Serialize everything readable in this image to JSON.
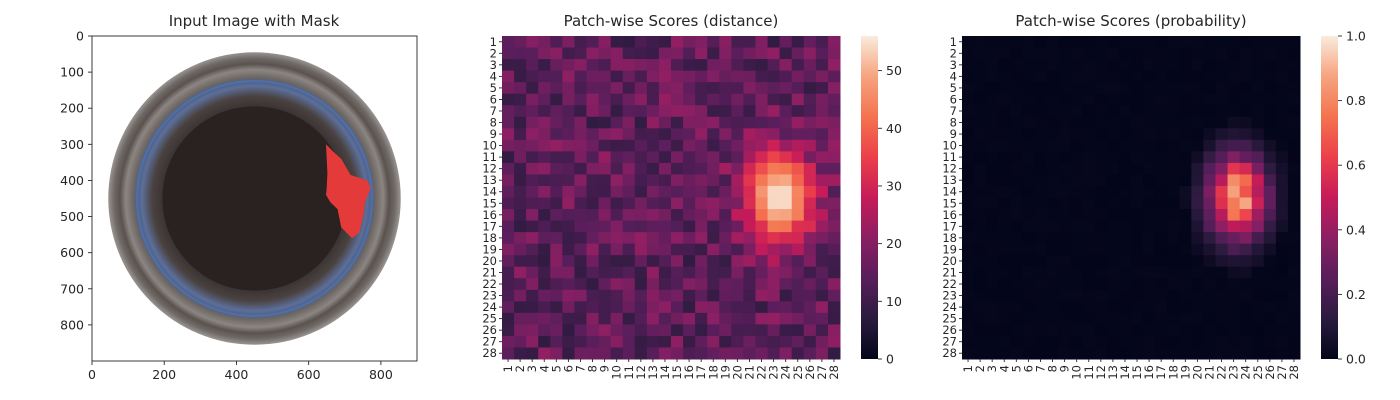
{
  "chart_data": [
    {
      "type": "image",
      "title": "Input Image with Mask",
      "xlim": [
        0,
        900
      ],
      "ylim": [
        0,
        900
      ],
      "y_inverted": true,
      "xticks": [
        0,
        200,
        400,
        600,
        800
      ],
      "yticks": [
        0,
        100,
        200,
        300,
        400,
        500,
        600,
        700,
        800
      ],
      "xtick_labels": [
        "0",
        "200",
        "400",
        "600",
        "800"
      ],
      "ytick_labels": [
        "0",
        "100",
        "200",
        "300",
        "400",
        "500",
        "600",
        "700",
        "800"
      ],
      "image": {
        "description_colors": {
          "outer_ring": "#5e5856",
          "inner_ring": "#8a8380",
          "blue_rim": "#4f6fa8",
          "inner_dark": "#2a2121",
          "mask": "#e53a3a"
        },
        "circle_center": [
          450,
          450
        ],
        "outer_radius": 405,
        "blue_ring_radius": 325,
        "inner_radius": 255,
        "mask_polygon": [
          [
            648,
            300
          ],
          [
            668,
            320
          ],
          [
            690,
            340
          ],
          [
            716,
            385
          ],
          [
            762,
            400
          ],
          [
            772,
            420
          ],
          [
            756,
            460
          ],
          [
            752,
            495
          ],
          [
            740,
            545
          ],
          [
            720,
            560
          ],
          [
            690,
            530
          ],
          [
            680,
            480
          ],
          [
            660,
            460
          ],
          [
            648,
            440
          ],
          [
            650,
            420
          ],
          [
            652,
            380
          ]
        ]
      }
    },
    {
      "type": "heatmap",
      "title": "Patch-wise Scores (distance)",
      "rows": 28,
      "cols": 28,
      "row_labels": [
        "1",
        "2",
        "3",
        "4",
        "5",
        "6",
        "7",
        "8",
        "9",
        "10",
        "11",
        "12",
        "13",
        "14",
        "15",
        "16",
        "17",
        "18",
        "19",
        "20",
        "21",
        "22",
        "23",
        "24",
        "25",
        "26",
        "27",
        "28"
      ],
      "col_labels": [
        "1",
        "2",
        "3",
        "4",
        "5",
        "6",
        "7",
        "8",
        "9",
        "10",
        "11",
        "12",
        "13",
        "14",
        "15",
        "16",
        "17",
        "18",
        "19",
        "20",
        "21",
        "22",
        "23",
        "24",
        "25",
        "26",
        "27",
        "28"
      ],
      "vmin": 0,
      "vmax": 56,
      "colorbar_ticks": [
        0,
        10,
        20,
        30,
        40,
        50
      ],
      "colorbar_tick_labels": [
        "0",
        "10",
        "20",
        "30",
        "40",
        "50"
      ],
      "colormap": "rocket",
      "hotspot": {
        "center_row": 14.5,
        "center_col": 23.5,
        "peak": 56,
        "sigma_row": 2.7,
        "sigma_col": 2.0
      },
      "background_range": [
        8,
        22
      ]
    },
    {
      "type": "heatmap",
      "title": "Patch-wise Scores (probability)",
      "rows": 28,
      "cols": 28,
      "row_labels": [
        "1",
        "2",
        "3",
        "4",
        "5",
        "6",
        "7",
        "8",
        "9",
        "10",
        "11",
        "12",
        "13",
        "14",
        "15",
        "16",
        "17",
        "18",
        "19",
        "20",
        "21",
        "22",
        "23",
        "24",
        "25",
        "26",
        "27",
        "28"
      ],
      "col_labels": [
        "1",
        "2",
        "3",
        "4",
        "5",
        "6",
        "7",
        "8",
        "9",
        "10",
        "11",
        "12",
        "13",
        "14",
        "15",
        "16",
        "17",
        "18",
        "19",
        "20",
        "21",
        "22",
        "23",
        "24",
        "25",
        "26",
        "27",
        "28"
      ],
      "vmin": 0,
      "vmax": 1,
      "colorbar_ticks": [
        0,
        0.2,
        0.4,
        0.6,
        0.8,
        1.0
      ],
      "colorbar_tick_labels": [
        "0.0",
        "0.2",
        "0.4",
        "0.6",
        "0.8",
        "1.0"
      ],
      "colormap": "rocket",
      "hotspot": {
        "center_row": 14.5,
        "center_col": 23.3,
        "peak": 0.85,
        "sigma_row": 2.6,
        "sigma_col": 1.7
      }
    }
  ]
}
